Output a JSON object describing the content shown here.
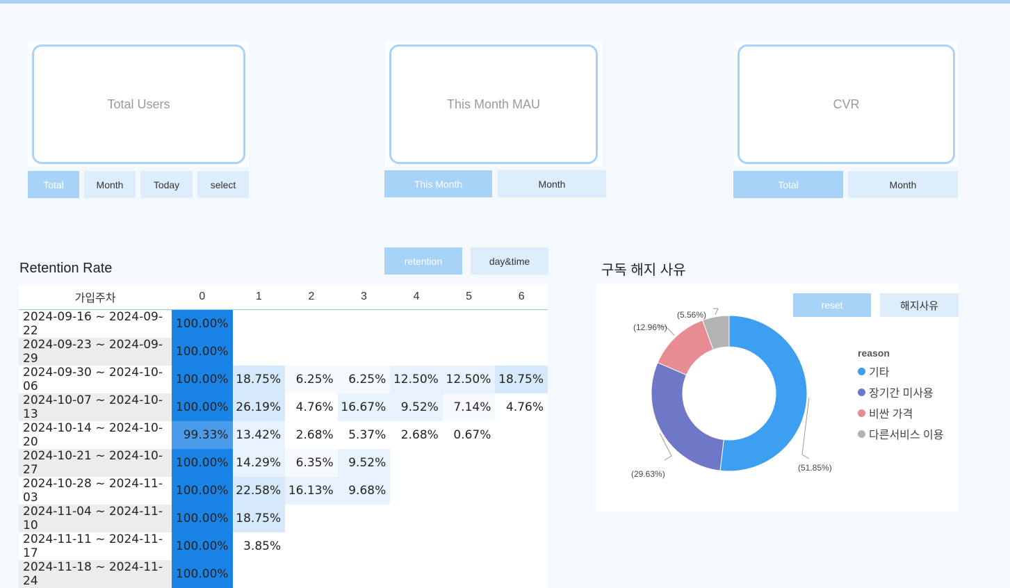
{
  "kpis": [
    {
      "label": "Total Users"
    },
    {
      "label": "This Month MAU"
    },
    {
      "label": "CVR"
    }
  ],
  "kpi_buttons": {
    "users": [
      "Total",
      "Month",
      "Today",
      "select"
    ],
    "mau": [
      "This Month",
      "Month"
    ],
    "cvr": [
      "Total",
      "Month"
    ]
  },
  "retention": {
    "title": "Retention Rate",
    "toggle": [
      "retention",
      "day&time"
    ],
    "headers": [
      "가입주차",
      "0",
      "1",
      "2",
      "3",
      "4",
      "5",
      "6"
    ],
    "rows": [
      {
        "cohort": "2024-09-16 ~ 2024-09-22",
        "values": [
          "100.00%",
          "",
          "",
          "",
          "",
          "",
          ""
        ]
      },
      {
        "cohort": "2024-09-23 ~ 2024-09-29",
        "values": [
          "100.00%",
          "",
          "",
          "",
          "",
          "",
          ""
        ]
      },
      {
        "cohort": "2024-09-30 ~ 2024-10-06",
        "values": [
          "100.00%",
          "18.75%",
          "6.25%",
          "6.25%",
          "12.50%",
          "12.50%",
          "18.75%"
        ]
      },
      {
        "cohort": "2024-10-07 ~ 2024-10-13",
        "values": [
          "100.00%",
          "26.19%",
          "4.76%",
          "16.67%",
          "9.52%",
          "7.14%",
          "4.76%"
        ]
      },
      {
        "cohort": "2024-10-14 ~ 2024-10-20",
        "values": [
          "99.33%",
          "13.42%",
          "2.68%",
          "5.37%",
          "2.68%",
          "0.67%",
          ""
        ]
      },
      {
        "cohort": "2024-10-21 ~ 2024-10-27",
        "values": [
          "100.00%",
          "14.29%",
          "6.35%",
          "9.52%",
          "",
          "",
          ""
        ]
      },
      {
        "cohort": "2024-10-28 ~ 2024-11-03",
        "values": [
          "100.00%",
          "22.58%",
          "16.13%",
          "9.68%",
          "",
          "",
          ""
        ]
      },
      {
        "cohort": "2024-11-04 ~ 2024-11-10",
        "values": [
          "100.00%",
          "18.75%",
          "",
          "",
          "",
          "",
          ""
        ]
      },
      {
        "cohort": "2024-11-11 ~ 2024-11-17",
        "values": [
          "100.00%",
          "3.85%",
          "",
          "",
          "",
          "",
          ""
        ]
      },
      {
        "cohort": "2024-11-18 ~ 2024-11-24",
        "values": [
          "100.00%",
          "",
          "",
          "",
          "",
          "",
          ""
        ]
      }
    ]
  },
  "churn": {
    "title": "구독 해지 사유",
    "buttons": [
      "reset",
      "해지사유"
    ],
    "legend_title": "reason"
  },
  "chart_data": {
    "type": "pie",
    "categories": [
      "기타",
      "장기간 미사용",
      "비싼 가격",
      "다른서비스 이용"
    ],
    "values": [
      51.85,
      29.63,
      12.96,
      5.56
    ],
    "value_labels": [
      "(51.85%)",
      "(29.63%)",
      "(12.96%)",
      "(5.56%)"
    ],
    "colors": [
      "#3d9ff0",
      "#6f78c6",
      "#e88c93",
      "#b3b3b3"
    ],
    "legend_placement": "right"
  }
}
